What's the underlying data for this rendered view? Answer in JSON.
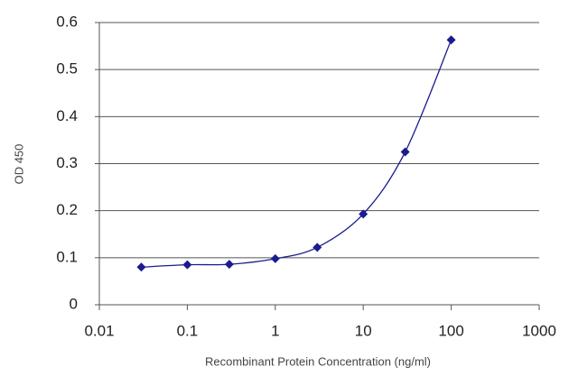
{
  "chart_data": {
    "type": "line",
    "x_label": "Recombinant Protein Concentration (ng/ml)",
    "y_label": "OD 450",
    "x": [
      0.03,
      0.1,
      0.3,
      1,
      3,
      10,
      30,
      100
    ],
    "series": [
      {
        "color": "#1c1c8f",
        "values": [
          0.08,
          0.085,
          0.086,
          0.098,
          0.122,
          0.193,
          0.325,
          0.563
        ]
      }
    ],
    "xscale": "log",
    "xlim": [
      0.01,
      1000
    ],
    "xticks": [
      0.01,
      0.1,
      1,
      10,
      100,
      1000
    ],
    "ylim": [
      0,
      0.6
    ],
    "yticks": [
      0,
      0.1,
      0.2,
      0.3,
      0.4,
      0.5,
      0.6
    ],
    "grid": true
  }
}
